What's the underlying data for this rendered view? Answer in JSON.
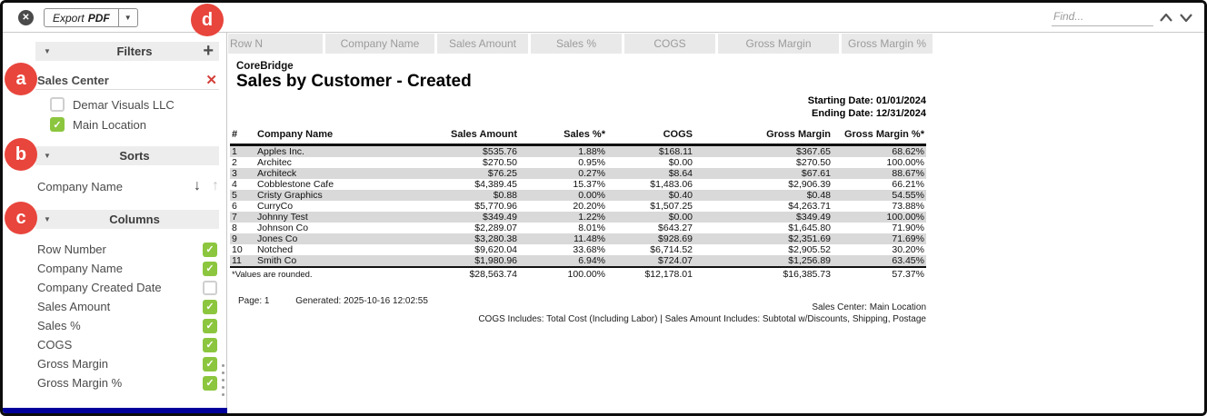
{
  "topbar": {
    "close_label": "✕",
    "export_word": "Export",
    "export_format": "PDF",
    "find_placeholder": "Find..."
  },
  "annotations": {
    "letters": [
      "a",
      "b",
      "c",
      "d"
    ]
  },
  "sidebar": {
    "filters": {
      "title": "Filters",
      "add_label": "+",
      "group_name": "Sales Center",
      "remove_label": "✕",
      "options": [
        {
          "label": "Demar Visuals LLC",
          "checked": false
        },
        {
          "label": "Main Location",
          "checked": true
        }
      ]
    },
    "sorts": {
      "title": "Sorts",
      "items": [
        {
          "label": "Company Name",
          "desc_icon": "↓",
          "asc_icon": "↑"
        }
      ]
    },
    "columns": {
      "title": "Columns",
      "items": [
        {
          "label": "Row Number",
          "checked": true
        },
        {
          "label": "Company Name",
          "checked": true
        },
        {
          "label": "Company Created Date",
          "checked": false
        },
        {
          "label": "Sales Amount",
          "checked": true
        },
        {
          "label": "Sales %",
          "checked": true
        },
        {
          "label": "COGS",
          "checked": true
        },
        {
          "label": "Gross Margin",
          "checked": true
        },
        {
          "label": "Gross Margin %",
          "checked": true
        }
      ]
    }
  },
  "chips": [
    "Row N",
    "Company Name",
    "Sales Amount",
    "Sales %",
    "COGS",
    "Gross Margin",
    "Gross Margin %"
  ],
  "report": {
    "brand": "CoreBridge",
    "title": "Sales by Customer - Created",
    "starting_date": "Starting Date: 01/01/2024",
    "ending_date": "Ending Date: 12/31/2024",
    "table": {
      "headers": [
        "#",
        "Company Name",
        "Sales Amount",
        "Sales %*",
        "COGS",
        "Gross Margin",
        "Gross Margin %*"
      ],
      "rows": [
        [
          "1",
          "Apples Inc.",
          "$535.76",
          "1.88%",
          "$168.11",
          "$367.65",
          "68.62%"
        ],
        [
          "2",
          "Architec",
          "$270.50",
          "0.95%",
          "$0.00",
          "$270.50",
          "100.00%"
        ],
        [
          "3",
          "Architeck",
          "$76.25",
          "0.27%",
          "$8.64",
          "$67.61",
          "88.67%"
        ],
        [
          "4",
          "Cobblestone Cafe",
          "$4,389.45",
          "15.37%",
          "$1,483.06",
          "$2,906.39",
          "66.21%"
        ],
        [
          "5",
          "Cristy Graphics",
          "$0.88",
          "0.00%",
          "$0.40",
          "$0.48",
          "54.55%"
        ],
        [
          "6",
          "CurryCo",
          "$5,770.96",
          "20.20%",
          "$1,507.25",
          "$4,263.71",
          "73.88%"
        ],
        [
          "7",
          "Johnny Test",
          "$349.49",
          "1.22%",
          "$0.00",
          "$349.49",
          "100.00%"
        ],
        [
          "8",
          "Johnson Co",
          "$2,289.07",
          "8.01%",
          "$643.27",
          "$1,645.80",
          "71.90%"
        ],
        [
          "9",
          "Jones Co",
          "$3,280.38",
          "11.48%",
          "$928.69",
          "$2,351.69",
          "71.69%"
        ],
        [
          "10",
          "Notched",
          "$9,620.04",
          "33.68%",
          "$6,714.52",
          "$2,905.52",
          "30.20%"
        ],
        [
          "11",
          "Smith Co",
          "$1,980.96",
          "6.94%",
          "$724.07",
          "$1,256.89",
          "63.45%"
        ]
      ],
      "footnote": "*Values are rounded.",
      "totals": [
        "$28,563.74",
        "100.00%",
        "$12,178.01",
        "$16,385.73",
        "57.37%"
      ]
    },
    "footer": {
      "page": "Page: 1",
      "generated": "Generated: 2025-10-16 12:02:55",
      "sales_center": "Sales Center: Main Location",
      "includes": "COGS Includes: Total Cost (Including Labor) | Sales Amount Includes: Subtotal w/Discounts, Shipping, Postage"
    }
  },
  "colors": {
    "checkbox_green": "#8cc63e",
    "annotation_red": "#e8453c",
    "remove_x_red": "#d43f3a",
    "sidebar_bottom_blue": "#00009b",
    "row_stripe_gray": "#d9d9d9"
  }
}
